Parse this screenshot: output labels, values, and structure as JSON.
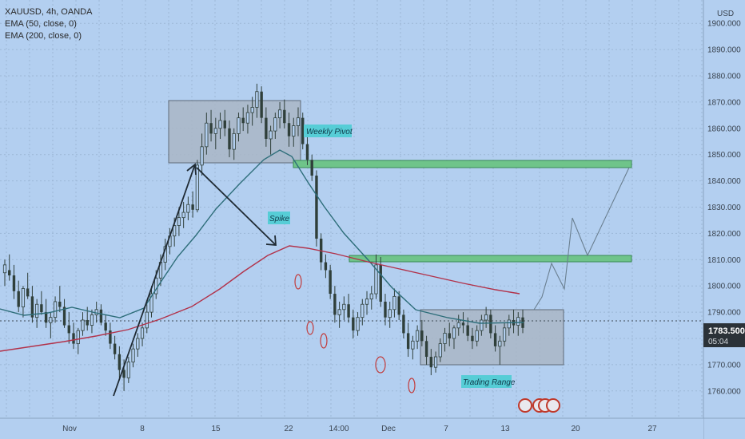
{
  "header": {
    "symbol_line": "XAUUSD, 4h, OANDA",
    "ema50_label": "EMA (50, close, 0)",
    "ema200_label": "EMA (200, close, 0)"
  },
  "price_axis": {
    "currency": "USD"
  },
  "current_price": {
    "value": "1783.500",
    "countdown": "05:04"
  },
  "annotations": {
    "weekly_pivot": "Weekly Pivot",
    "spike": "Spike",
    "trading_range": "Trading Range"
  },
  "colors": {
    "background": "#b3cff0",
    "candle": "#2f3f3a",
    "ema50": "#2e6e7a",
    "ema200": "#b2324a",
    "zone": "#6fc48a",
    "box": "#a9b6c5",
    "label_bg": "#56cdd6"
  },
  "chart_data": {
    "type": "candlestick",
    "title": "XAUUSD, 4h, OANDA",
    "ylim": [
      1755,
      1905
    ],
    "yticks": [
      1760,
      1770,
      1780,
      1790,
      1800,
      1810,
      1820,
      1830,
      1840,
      1850,
      1860,
      1870,
      1880,
      1890,
      1900
    ],
    "ytick_labels": [
      "1760.000",
      "1770.000",
      "1780.000",
      "1790.000",
      "1800.000",
      "1810.000",
      "1820.000",
      "1830.000",
      "1840.000",
      "1850.000",
      "1860.000",
      "1870.000",
      "1880.000",
      "1890.000",
      "1900.000"
    ],
    "xticks": [
      "Nov",
      "8",
      "15",
      "22",
      "14:00",
      "Dec",
      "7",
      "13",
      "20",
      "27"
    ],
    "grid": true,
    "series": [
      {
        "name": "EMA (50, close, 0)",
        "values": [
          1793,
          1790,
          1788,
          1787,
          1788,
          1786,
          1787,
          1795,
          1808,
          1826,
          1838,
          1847,
          1851,
          1847,
          1832,
          1815,
          1802,
          1793,
          1790,
          1788,
          1787,
          1785
        ]
      },
      {
        "name": "EMA (200, close, 0)",
        "values": [
          1776,
          1778,
          1780,
          1782,
          1784,
          1788,
          1795,
          1803,
          1810,
          1815,
          1813,
          1810,
          1806,
          1803,
          1800,
          1797
        ]
      }
    ],
    "levels": [
      {
        "label": "Weekly Pivot",
        "price": 1846.5
      },
      {
        "label": "",
        "price": 1810
      }
    ],
    "candles_ohlc": [
      [
        1805,
        1810,
        1800,
        1808
      ],
      [
        1806,
        1812,
        1802,
        1804
      ],
      [
        1804,
        1808,
        1795,
        1798
      ],
      [
        1798,
        1802,
        1790,
        1792
      ],
      [
        1792,
        1800,
        1788,
        1799
      ],
      [
        1799,
        1805,
        1795,
        1796
      ],
      [
        1796,
        1800,
        1786,
        1788
      ],
      [
        1788,
        1795,
        1784,
        1793
      ],
      [
        1793,
        1798,
        1789,
        1790
      ],
      [
        1790,
        1795,
        1784,
        1786
      ],
      [
        1786,
        1790,
        1780,
        1788
      ],
      [
        1788,
        1796,
        1786,
        1794
      ],
      [
        1794,
        1800,
        1790,
        1792
      ],
      [
        1792,
        1795,
        1784,
        1785
      ],
      [
        1785,
        1790,
        1778,
        1782
      ],
      [
        1782,
        1786,
        1776,
        1778
      ],
      [
        1778,
        1784,
        1774,
        1783
      ],
      [
        1783,
        1790,
        1781,
        1787
      ],
      [
        1787,
        1792,
        1783,
        1785
      ],
      [
        1785,
        1791,
        1782,
        1789
      ],
      [
        1789,
        1794,
        1786,
        1791
      ],
      [
        1791,
        1793,
        1785,
        1786
      ],
      [
        1786,
        1789,
        1781,
        1783
      ],
      [
        1783,
        1786,
        1776,
        1778
      ],
      [
        1778,
        1781,
        1772,
        1774
      ],
      [
        1774,
        1777,
        1765,
        1768
      ],
      [
        1768,
        1772,
        1760,
        1765
      ],
      [
        1765,
        1773,
        1763,
        1771
      ],
      [
        1771,
        1778,
        1769,
        1776
      ],
      [
        1776,
        1782,
        1773,
        1780
      ],
      [
        1780,
        1786,
        1777,
        1784
      ],
      [
        1784,
        1793,
        1782,
        1790
      ],
      [
        1790,
        1800,
        1788,
        1797
      ],
      [
        1797,
        1806,
        1795,
        1803
      ],
      [
        1803,
        1812,
        1800,
        1809
      ],
      [
        1809,
        1818,
        1806,
        1815
      ],
      [
        1815,
        1822,
        1812,
        1819
      ],
      [
        1819,
        1826,
        1815,
        1823
      ],
      [
        1823,
        1830,
        1819,
        1826
      ],
      [
        1826,
        1832,
        1822,
        1828
      ],
      [
        1828,
        1834,
        1825,
        1831
      ],
      [
        1831,
        1836,
        1826,
        1829
      ],
      [
        1829,
        1848,
        1828,
        1846
      ],
      [
        1846,
        1858,
        1842,
        1853
      ],
      [
        1853,
        1866,
        1850,
        1862
      ],
      [
        1862,
        1867,
        1855,
        1858
      ],
      [
        1858,
        1864,
        1852,
        1860
      ],
      [
        1860,
        1866,
        1856,
        1863
      ],
      [
        1863,
        1867,
        1857,
        1860
      ],
      [
        1860,
        1863,
        1849,
        1852
      ],
      [
        1852,
        1860,
        1848,
        1858
      ],
      [
        1858,
        1866,
        1855,
        1864
      ],
      [
        1864,
        1868,
        1859,
        1862
      ],
      [
        1862,
        1869,
        1858,
        1866
      ],
      [
        1866,
        1872,
        1861,
        1868
      ],
      [
        1868,
        1877,
        1864,
        1874
      ],
      [
        1874,
        1876,
        1862,
        1864
      ],
      [
        1864,
        1868,
        1853,
        1856
      ],
      [
        1856,
        1861,
        1850,
        1859
      ],
      [
        1859,
        1866,
        1856,
        1864
      ],
      [
        1864,
        1870,
        1860,
        1867
      ],
      [
        1867,
        1871,
        1860,
        1862
      ],
      [
        1862,
        1866,
        1853,
        1857
      ],
      [
        1857,
        1864,
        1853,
        1861
      ],
      [
        1861,
        1868,
        1857,
        1864
      ],
      [
        1864,
        1866,
        1852,
        1854
      ],
      [
        1854,
        1858,
        1846,
        1848
      ],
      [
        1848,
        1850,
        1840,
        1842
      ],
      [
        1842,
        1844,
        1815,
        1818
      ],
      [
        1818,
        1820,
        1806,
        1809
      ],
      [
        1809,
        1812,
        1803,
        1806
      ],
      [
        1806,
        1808,
        1795,
        1797
      ],
      [
        1797,
        1800,
        1786,
        1789
      ],
      [
        1789,
        1794,
        1784,
        1791
      ],
      [
        1791,
        1796,
        1787,
        1793
      ],
      [
        1793,
        1797,
        1786,
        1788
      ],
      [
        1788,
        1791,
        1780,
        1783
      ],
      [
        1783,
        1790,
        1781,
        1788
      ],
      [
        1788,
        1795,
        1785,
        1793
      ],
      [
        1793,
        1798,
        1789,
        1795
      ],
      [
        1795,
        1800,
        1791,
        1797
      ],
      [
        1797,
        1812,
        1795,
        1808
      ],
      [
        1808,
        1811,
        1792,
        1794
      ],
      [
        1794,
        1797,
        1785,
        1788
      ],
      [
        1788,
        1794,
        1784,
        1791
      ],
      [
        1791,
        1799,
        1788,
        1796
      ],
      [
        1796,
        1798,
        1787,
        1789
      ],
      [
        1789,
        1791,
        1780,
        1782
      ],
      [
        1782,
        1786,
        1773,
        1776
      ],
      [
        1776,
        1781,
        1772,
        1779
      ],
      [
        1779,
        1785,
        1776,
        1783
      ],
      [
        1783,
        1787,
        1777,
        1779
      ],
      [
        1779,
        1781,
        1770,
        1773
      ],
      [
        1773,
        1776,
        1766,
        1769
      ],
      [
        1769,
        1775,
        1767,
        1773
      ],
      [
        1773,
        1780,
        1771,
        1778
      ],
      [
        1778,
        1784,
        1775,
        1782
      ],
      [
        1782,
        1786,
        1777,
        1780
      ],
      [
        1780,
        1785,
        1776,
        1784
      ],
      [
        1784,
        1789,
        1781,
        1786
      ],
      [
        1786,
        1790,
        1782,
        1785
      ],
      [
        1785,
        1788,
        1779,
        1781
      ],
      [
        1781,
        1784,
        1776,
        1779
      ],
      [
        1779,
        1785,
        1777,
        1783
      ],
      [
        1783,
        1789,
        1781,
        1787
      ],
      [
        1787,
        1792,
        1784,
        1789
      ],
      [
        1789,
        1791,
        1780,
        1782
      ],
      [
        1782,
        1785,
        1775,
        1777
      ],
      [
        1777,
        1781,
        1770,
        1779
      ],
      [
        1779,
        1786,
        1777,
        1784
      ],
      [
        1784,
        1789,
        1781,
        1787
      ],
      [
        1787,
        1791,
        1782,
        1785
      ],
      [
        1785,
        1790,
        1781,
        1788
      ],
      [
        1788,
        1791,
        1782,
        1784
      ]
    ]
  }
}
